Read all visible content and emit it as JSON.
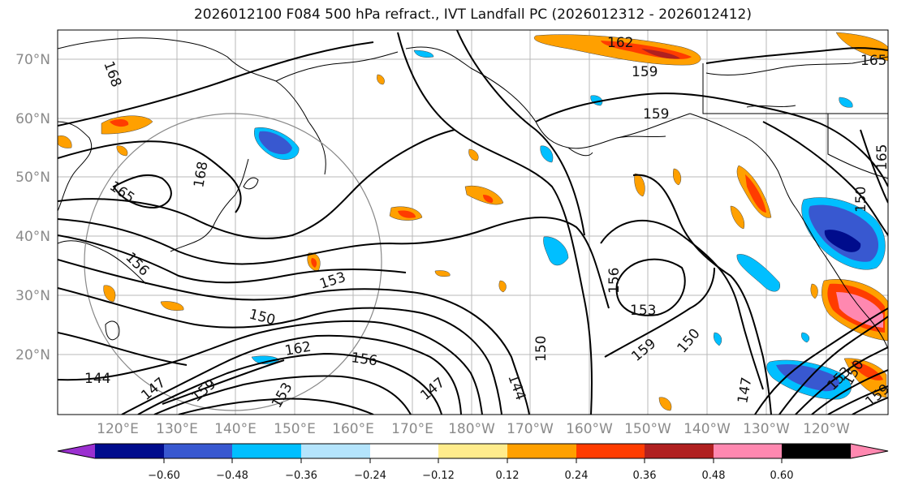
{
  "title": "2026012100 F084 500 hPa refract., IVT Landfall PC (2026012312 - 2026012412)",
  "lat_labels": [
    "70°N",
    "60°N",
    "50°N",
    "40°N",
    "30°N",
    "20°N"
  ],
  "lon_labels": [
    "120°E",
    "130°E",
    "140°E",
    "150°E",
    "160°E",
    "170°E",
    "180°W",
    "170°W",
    "160°W",
    "150°W",
    "140°W",
    "130°W",
    "120°W"
  ],
  "colorbar": {
    "colors": [
      "#9b30d0",
      "#000c8c",
      "#3858d0",
      "#00bfff",
      "#b4e4fc",
      "#ffffff",
      "#ffec8c",
      "#ffa000",
      "#ff3c00",
      "#b02020",
      "#ff88b0"
    ],
    "tick_labels": [
      "−0.60",
      "−0.48",
      "−0.36",
      "−0.24",
      "−0.12",
      "0.12",
      "0.24",
      "0.36",
      "0.48",
      "0.60"
    ]
  },
  "contour_labels": [
    "162",
    "159",
    "165",
    "168",
    "168",
    "165",
    "159",
    "150",
    "156",
    "153",
    "153",
    "150",
    "162",
    "156",
    "147",
    "159",
    "153",
    "150",
    "144",
    "147",
    "159",
    "165",
    "150",
    "156",
    "153",
    "159",
    "150",
    "147",
    "144",
    "159",
    "162"
  ]
}
